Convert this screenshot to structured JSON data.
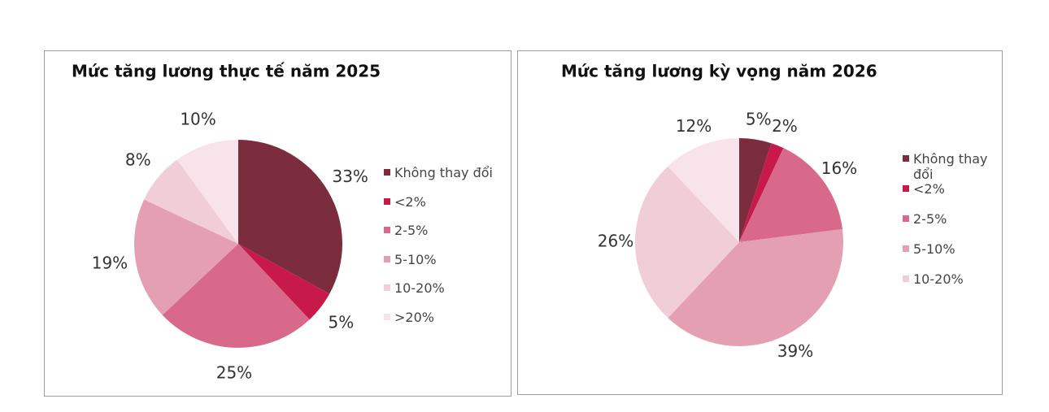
{
  "chart_data": [
    {
      "type": "pie",
      "title": "Mức tăng lương thực tế năm 2025",
      "categories": [
        "Không thay đổi",
        "<2%",
        "2-5%",
        "5-10%",
        "10-20%",
        ">20%"
      ],
      "values": [
        33,
        5,
        25,
        19,
        8,
        10
      ],
      "value_labels": [
        "33%",
        "5%",
        "25%",
        "19%",
        "8%",
        "10%"
      ],
      "colors": [
        "#7b2d3e",
        "#c8194b",
        "#d9698a",
        "#e59fb2",
        "#f1cdd7",
        "#f7e3e9"
      ]
    },
    {
      "type": "pie",
      "title": "Mức tăng lương kỳ vọng năm 2026",
      "categories": [
        "Không thay đổi",
        "<2%",
        "2-5%",
        "5-10%",
        "10-20%",
        null
      ],
      "values": [
        5,
        2,
        16,
        39,
        26,
        12
      ],
      "value_labels": [
        "5%",
        "2%",
        "16%",
        "39%",
        "26%",
        "12%"
      ],
      "colors": [
        "#7b2d3e",
        "#c8194b",
        "#d9698a",
        "#e59fb2",
        "#f1cdd7",
        "#f7e3e9"
      ]
    }
  ]
}
